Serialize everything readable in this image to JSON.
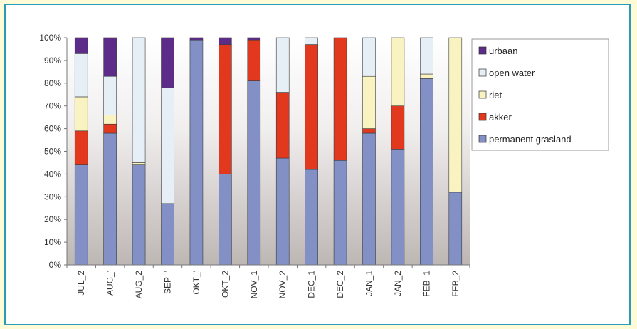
{
  "chart_data": {
    "type": "bar",
    "stacked": true,
    "percent": true,
    "categories": [
      "JUL_2",
      "AUG_1",
      "AUG_2",
      "SEP_1",
      "OKT_1",
      "OKT_2",
      "NOV_1",
      "NOV_2",
      "DEC_1",
      "DEC_2",
      "JAN_1",
      "JAN_2",
      "FEB_1",
      "FEB_2"
    ],
    "category_display": [
      "JUL_2",
      "AUG_'",
      "AUG_2",
      "SEP_'",
      "OKT_'",
      "OKT_2",
      "NOV_1",
      "NOV_2",
      "DEC_1",
      "DEC_2",
      "JAN_1",
      "JAN_2",
      "FEB_1",
      "FEB_2"
    ],
    "ylim": [
      0,
      100
    ],
    "yticks": [
      0,
      10,
      20,
      30,
      40,
      50,
      60,
      70,
      80,
      90,
      100
    ],
    "ytick_labels": [
      "0%",
      "10%",
      "20%",
      "30%",
      "40%",
      "50%",
      "60%",
      "70%",
      "80%",
      "90%",
      "100%"
    ],
    "series": [
      {
        "name": "permanent grasland",
        "color": "#8290c6",
        "values": [
          44,
          58,
          44,
          27,
          99,
          40,
          81,
          47,
          42,
          46,
          58,
          51,
          82,
          32
        ]
      },
      {
        "name": "akker",
        "color": "#e2391e",
        "values": [
          15,
          4,
          0,
          0,
          0,
          57,
          18,
          29,
          55,
          54,
          2,
          19,
          0,
          0
        ]
      },
      {
        "name": "riet",
        "color": "#f8f3c0",
        "values": [
          15,
          4,
          1,
          0,
          0,
          0,
          0,
          0,
          0,
          0,
          23,
          30,
          2,
          68
        ]
      },
      {
        "name": "open water",
        "color": "#e6eef6",
        "values": [
          19,
          17,
          55,
          51,
          0,
          0,
          0,
          24,
          3,
          0,
          17,
          0,
          16,
          0
        ]
      },
      {
        "name": "urbaan",
        "color": "#5c2c88",
        "values": [
          7,
          17,
          0,
          22,
          1,
          3,
          1,
          0,
          0,
          0,
          0,
          0,
          0,
          0
        ]
      }
    ],
    "legend": {
      "placement": "right",
      "entries": [
        "urbaan",
        "open water",
        "riet",
        "akker",
        "permanent grasland"
      ]
    },
    "grid": false
  }
}
